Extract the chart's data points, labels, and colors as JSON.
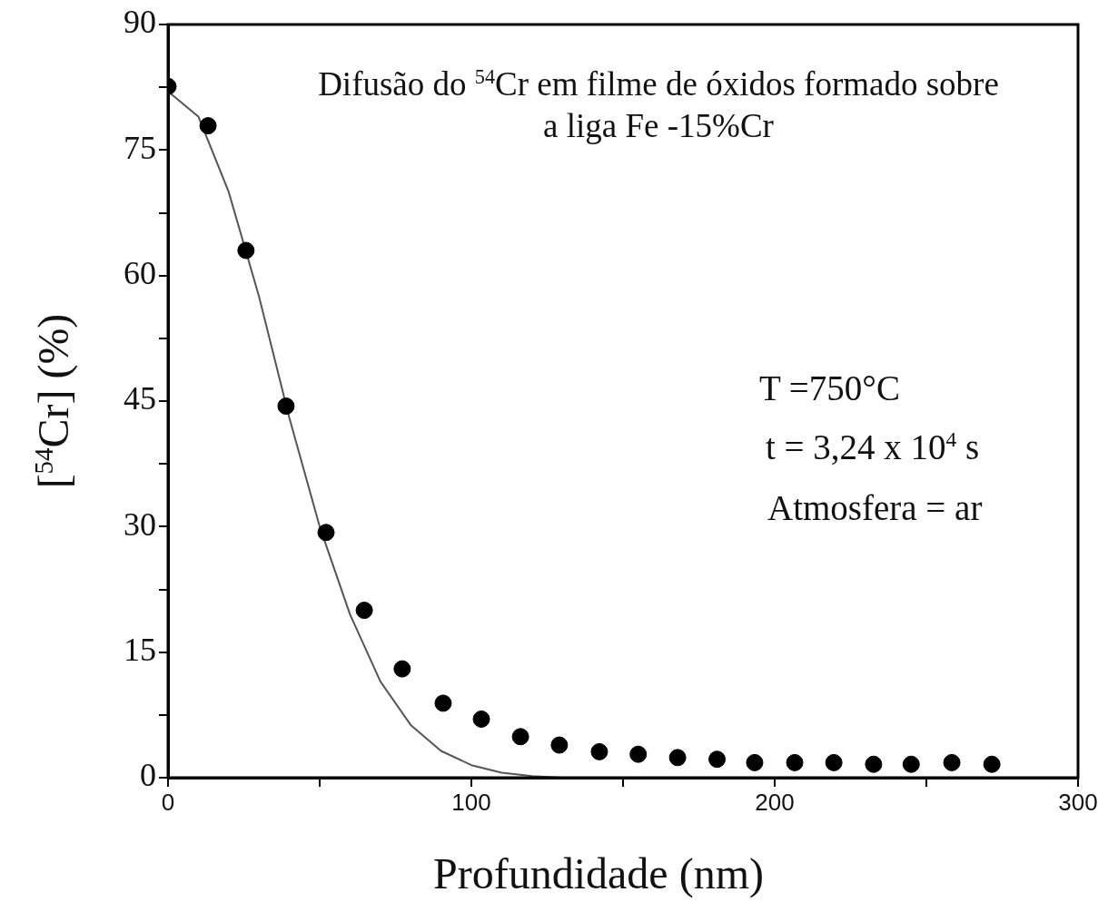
{
  "chart_data": {
    "type": "scatter",
    "title": "Difusão do $^{54}$Cr em filme de óxidos formado sobre a liga Fe -15%Cr",
    "xlabel": "Profundidade (nm)",
    "ylabel": "[$^{54}$Cr] (%)",
    "annotations": [
      "T =750°C",
      "t = 3,24 x 10$^{4}$ s",
      "Atmosfera = ar"
    ],
    "xlim": [
      0,
      300
    ],
    "ylim": [
      0,
      90
    ],
    "xticks": [
      0,
      {
        "value": 50,
        "label": null
      },
      100,
      {
        "value": 150,
        "label": null
      },
      200,
      {
        "value": 250,
        "label": null
      },
      300
    ],
    "yticks": [
      0,
      {
        "value": 7.5,
        "label": null
      },
      15,
      {
        "value": 22.5,
        "label": null
      },
      30,
      {
        "value": 37.5,
        "label": null
      },
      45,
      {
        "value": 52.5,
        "label": null
      },
      60,
      {
        "value": 67.5,
        "label": null
      },
      75,
      {
        "value": 82.5,
        "label": null
      },
      90
    ],
    "grid": false,
    "legend": false,
    "series": [
      {
        "type": "line",
        "color": "#555555",
        "marker": "none",
        "line_style": "solid",
        "x": [
          0,
          10,
          20,
          30,
          40,
          50,
          60,
          70,
          80,
          90,
          100,
          110,
          120,
          130
        ],
        "values": [
          82,
          79,
          70,
          57.5,
          43,
          30,
          19.5,
          11.5,
          6.3,
          3.2,
          1.5,
          0.6,
          0.2,
          0
        ]
      },
      {
        "type": "scatter",
        "color": "#000000",
        "marker": "circle",
        "x": [
          0,
          13.2,
          25.7,
          38.9,
          52.1,
          64.7,
          77.2,
          90.7,
          103.3,
          116.2,
          129,
          142.2,
          155,
          168,
          181,
          193.4,
          206.6,
          219.5,
          232.6,
          245,
          258.4,
          271.6
        ],
        "values": [
          82.6,
          77.9,
          63,
          44.4,
          29.3,
          20,
          13,
          8.9,
          7,
          4.9,
          3.9,
          3.1,
          2.8,
          2.4,
          2.2,
          1.8,
          1.8,
          1.8,
          1.6,
          1.6,
          1.8,
          1.6
        ]
      }
    ]
  }
}
